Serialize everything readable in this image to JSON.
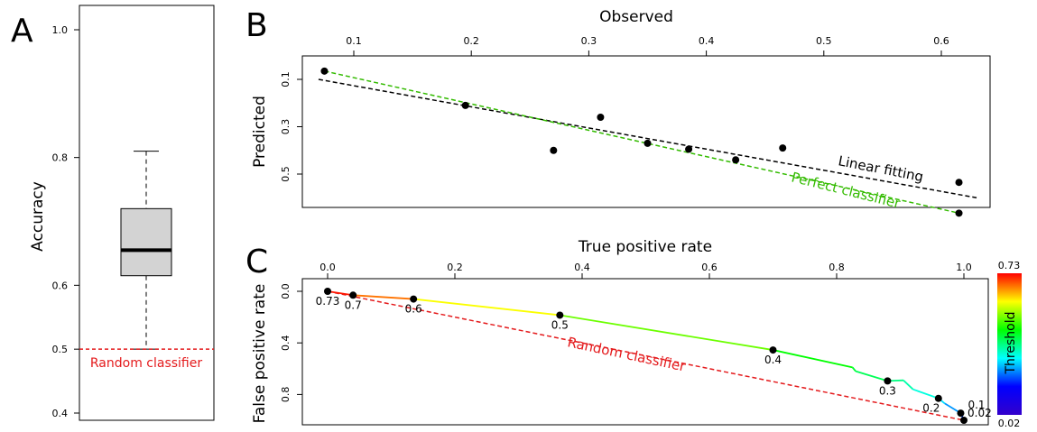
{
  "panels": {
    "a": "A",
    "b": "B",
    "c": "C"
  },
  "chart_data": [
    {
      "type": "box",
      "panel": "A",
      "ylabel": "Accuracy",
      "ylim": [
        0.4,
        1.0
      ],
      "yticks": [
        "0.4",
        "0.5",
        "0.6",
        "0.8",
        "1.0"
      ],
      "ytick_values": [
        0.4,
        0.5,
        0.6,
        0.8,
        1.0
      ],
      "box": {
        "whisker_low": 0.5,
        "q1": 0.615,
        "median": 0.655,
        "q3": 0.72,
        "whisker_high": 0.81
      },
      "reference_line": {
        "label": "Random classifier",
        "y": 0.5,
        "color": "#e41a1c"
      }
    },
    {
      "type": "scatter",
      "panel": "B",
      "xlabel": "Observed",
      "ylabel": "Predicted",
      "xlim": [
        0.07,
        0.63
      ],
      "ylim": [
        0.0,
        0.63
      ],
      "y_reversed": true,
      "xticks": [
        "0.1",
        "0.2",
        "0.3",
        "0.4",
        "0.5",
        "0.6"
      ],
      "xtick_values": [
        0.1,
        0.2,
        0.3,
        0.4,
        0.5,
        0.6
      ],
      "yticks": [
        "0.1",
        "0.3",
        "0.5"
      ],
      "ytick_values": [
        0.1,
        0.3,
        0.5
      ],
      "points": [
        {
          "x": 0.075,
          "y": 0.065
        },
        {
          "x": 0.195,
          "y": 0.21
        },
        {
          "x": 0.27,
          "y": 0.4
        },
        {
          "x": 0.31,
          "y": 0.26
        },
        {
          "x": 0.35,
          "y": 0.37
        },
        {
          "x": 0.385,
          "y": 0.395
        },
        {
          "x": 0.425,
          "y": 0.44
        },
        {
          "x": 0.465,
          "y": 0.39
        },
        {
          "x": 0.615,
          "y": 0.535
        },
        {
          "x": 0.615,
          "y": 0.665
        }
      ],
      "lines": [
        {
          "label": "Linear fitting",
          "color": "#000000",
          "from": [
            0.07,
            0.1
          ],
          "to": [
            0.63,
            0.6
          ]
        },
        {
          "label": "Perfect classifier",
          "color": "#33bb00",
          "from": [
            0.075,
            0.065
          ],
          "to": [
            0.615,
            0.665
          ]
        }
      ]
    },
    {
      "type": "line",
      "panel": "C",
      "xlabel": "True positive rate",
      "ylabel": "False positive rate",
      "xlim": [
        -0.03,
        1.05
      ],
      "ylim": [
        -0.03,
        1.06
      ],
      "y_reversed": true,
      "xticks": [
        "0.0",
        "0.2",
        "0.4",
        "0.6",
        "0.8",
        "1.0"
      ],
      "xtick_values": [
        0.0,
        0.2,
        0.4,
        0.6,
        0.8,
        1.0
      ],
      "yticks": [
        "0.0",
        "0.4",
        "0.8"
      ],
      "ytick_values": [
        0.0,
        0.4,
        0.8
      ],
      "curve": [
        {
          "x": 0.0,
          "y": 0.0,
          "t": 0.73
        },
        {
          "x": 0.04,
          "y": 0.03,
          "t": 0.7
        },
        {
          "x": 0.135,
          "y": 0.06,
          "t": 0.6
        },
        {
          "x": 0.365,
          "y": 0.185,
          "t": 0.5
        },
        {
          "x": 0.7,
          "y": 0.455,
          "t": 0.4
        },
        {
          "x": 0.825,
          "y": 0.59,
          "t": 0.35
        },
        {
          "x": 0.83,
          "y": 0.62,
          "t": 0.33
        },
        {
          "x": 0.88,
          "y": 0.695,
          "t": 0.3
        },
        {
          "x": 0.905,
          "y": 0.69,
          "t": 0.27
        },
        {
          "x": 0.92,
          "y": 0.76,
          "t": 0.24
        },
        {
          "x": 0.96,
          "y": 0.83,
          "t": 0.2
        },
        {
          "x": 0.97,
          "y": 0.87,
          "t": 0.15
        },
        {
          "x": 0.995,
          "y": 0.945,
          "t": 0.1
        },
        {
          "x": 1.0,
          "y": 1.0,
          "t": 0.02
        }
      ],
      "threshold_labels": [
        {
          "x": 0.0,
          "y": 0.0,
          "label": "0.73"
        },
        {
          "x": 0.04,
          "y": 0.03,
          "label": "0.7"
        },
        {
          "x": 0.135,
          "y": 0.06,
          "label": "0.6"
        },
        {
          "x": 0.365,
          "y": 0.185,
          "label": "0.5"
        },
        {
          "x": 0.7,
          "y": 0.455,
          "label": "0.4"
        },
        {
          "x": 0.88,
          "y": 0.695,
          "label": "0.3"
        },
        {
          "x": 0.96,
          "y": 0.83,
          "label": "0.2"
        },
        {
          "x": 0.995,
          "y": 0.945,
          "label": "0.1"
        },
        {
          "x": 1.0,
          "y": 1.0,
          "label": "0.02"
        }
      ],
      "reference_line": {
        "label": "Random classifier",
        "color": "#e41a1c",
        "from": [
          0.0,
          0.0
        ],
        "to": [
          1.0,
          1.0
        ]
      },
      "colorbar": {
        "label": "Threshold",
        "min": "0.02",
        "max": "0.73"
      }
    }
  ]
}
